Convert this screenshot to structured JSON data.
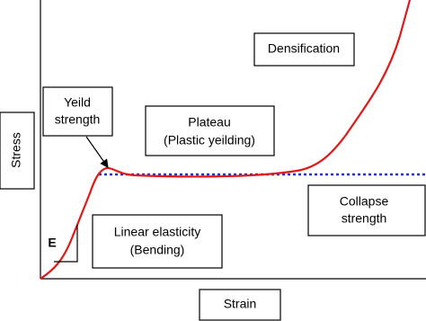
{
  "axes": {
    "y_label": "Stress",
    "x_label": "Strain"
  },
  "regions": {
    "densification": "Densification",
    "yield": [
      "Yeild",
      "strength"
    ],
    "plateau": [
      "Plateau",
      "(Plastic yeilding)"
    ],
    "collapse": [
      "Collapse",
      "strength"
    ],
    "linear": [
      "Linear elasticity",
      "(Bending)"
    ],
    "modulus": "E"
  }
}
